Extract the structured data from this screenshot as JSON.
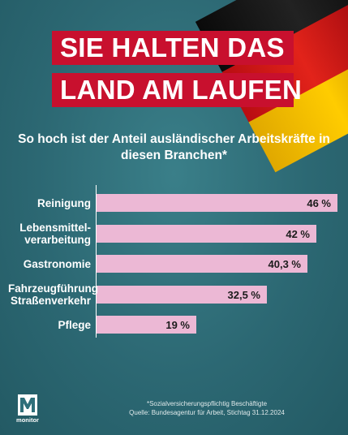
{
  "title": {
    "line1": "SIE HALTEN DAS",
    "line2": "LAND AM LAUFEN"
  },
  "subtitle": "So hoch ist der Anteil ausländischer Arbeitskräfte in diesen Branchen*",
  "colors": {
    "background": "#2f6f7a",
    "title_box": "#c8102e",
    "bar": "#ecb8d5"
  },
  "chart_data": {
    "type": "bar",
    "orientation": "horizontal",
    "categories": [
      "Reinigung",
      "Lebensmittel-\nverarbeitung",
      "Gastronomie",
      "Fahrzeugführung\nStraßenverkehr",
      "Pflege"
    ],
    "values": [
      46,
      42,
      40.3,
      32.5,
      19
    ],
    "value_labels": [
      "46 %",
      "42 %",
      "40,3 %",
      "32,5 %",
      "19 %"
    ],
    "xlim": [
      0,
      46
    ],
    "grid": false
  },
  "footnote": {
    "line1": "*Sozialversicherungspflichtig Beschäftigte",
    "line2": "Quelle: Bundesagentur für Arbeit, Stichtag 31.12.2024"
  },
  "logo": {
    "text": "monitor",
    "icon": "monitor-m-logo"
  }
}
